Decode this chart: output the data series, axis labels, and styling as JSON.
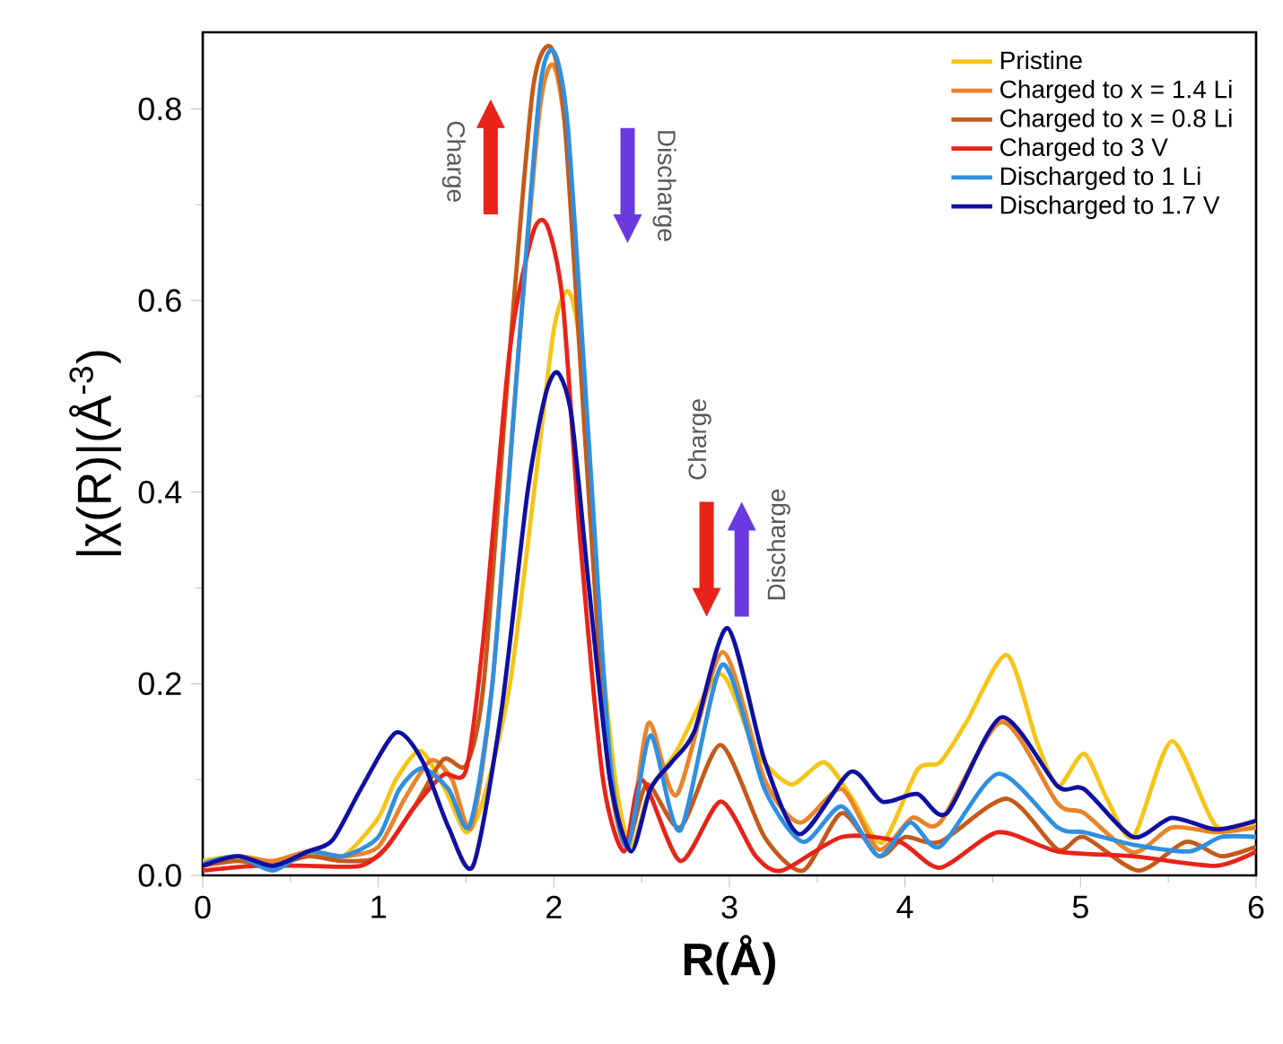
{
  "chart_data": {
    "type": "line",
    "xlabel": "R(Å)",
    "ylabel": "|χ(R)|(Å$^{-3}$)",
    "xlim": [
      0,
      6
    ],
    "ylim": [
      0,
      0.88
    ],
    "xticks": [
      0,
      1,
      2,
      3,
      4,
      5,
      6
    ],
    "yticks": [
      {
        "value": 0,
        "label": "0.0"
      },
      0.2,
      0.4,
      0.6,
      0.8
    ],
    "legend": "top right",
    "annotations": [
      "Charge",
      "Discharge",
      "Charge",
      "Discharge"
    ],
    "series": [
      {
        "name": "Pristine",
        "color": "#f5c518",
        "x": [
          0,
          0.2,
          0.4,
          0.6,
          0.8,
          1.0,
          1.1,
          1.24,
          1.38,
          1.5,
          1.6,
          1.75,
          1.9,
          2.0,
          2.08,
          2.15,
          2.25,
          2.35,
          2.44,
          2.55,
          2.7,
          2.95,
          3.15,
          3.35,
          3.54,
          3.7,
          3.87,
          4.07,
          4.2,
          4.35,
          4.58,
          4.75,
          4.87,
          5.02,
          5.15,
          5.3,
          5.52,
          5.77,
          6.0
        ],
        "values": [
          0.015,
          0.02,
          0.012,
          0.02,
          0.02,
          0.06,
          0.1,
          0.13,
          0.09,
          0.045,
          0.08,
          0.2,
          0.42,
          0.57,
          0.61,
          0.55,
          0.28,
          0.1,
          0.03,
          0.09,
          0.13,
          0.21,
          0.13,
          0.095,
          0.118,
          0.08,
          0.034,
          0.11,
          0.118,
          0.16,
          0.23,
          0.14,
          0.093,
          0.127,
          0.08,
          0.04,
          0.14,
          0.052,
          0.055
        ]
      },
      {
        "name": "Charged to x = 1.4 Li",
        "color": "#e8842a",
        "x": [
          0,
          0.2,
          0.4,
          0.6,
          0.8,
          1.0,
          1.15,
          1.3,
          1.42,
          1.53,
          1.65,
          1.8,
          1.92,
          2.0,
          2.08,
          2.2,
          2.32,
          2.42,
          2.54,
          2.7,
          2.96,
          3.2,
          3.4,
          3.64,
          3.85,
          4.04,
          4.2,
          4.55,
          4.87,
          5.02,
          5.3,
          5.52,
          5.77,
          6.0
        ],
        "values": [
          0.01,
          0.02,
          0.015,
          0.025,
          0.02,
          0.03,
          0.08,
          0.12,
          0.1,
          0.05,
          0.2,
          0.55,
          0.8,
          0.845,
          0.75,
          0.4,
          0.12,
          0.03,
          0.159,
          0.084,
          0.233,
          0.1,
          0.055,
          0.09,
          0.027,
          0.06,
          0.055,
          0.16,
          0.075,
          0.065,
          0.024,
          0.05,
          0.045,
          0.05
        ]
      },
      {
        "name": "Charged to x = 0.8 Li",
        "color": "#c45a1a",
        "x": [
          0,
          0.2,
          0.4,
          0.6,
          0.8,
          1.0,
          1.2,
          1.37,
          1.5,
          1.6,
          1.75,
          1.88,
          1.98,
          2.06,
          2.18,
          2.3,
          2.41,
          2.53,
          2.72,
          2.95,
          3.2,
          3.42,
          3.64,
          3.85,
          4.0,
          4.2,
          4.58,
          4.87,
          5.02,
          5.33,
          5.6,
          5.8,
          6.0
        ],
        "values": [
          0.01,
          0.015,
          0.01,
          0.02,
          0.015,
          0.02,
          0.07,
          0.121,
          0.115,
          0.2,
          0.55,
          0.82,
          0.865,
          0.79,
          0.45,
          0.13,
          0.03,
          0.095,
          0.05,
          0.136,
          0.04,
          0.005,
          0.065,
          0.02,
          0.04,
          0.035,
          0.08,
          0.027,
          0.04,
          0.005,
          0.035,
          0.02,
          0.03
        ]
      },
      {
        "name": "Charged to 3 V",
        "color": "#e8231a",
        "x": [
          0,
          0.3,
          0.6,
          0.9,
          1.05,
          1.2,
          1.37,
          1.5,
          1.6,
          1.75,
          1.88,
          1.96,
          2.05,
          2.15,
          2.28,
          2.4,
          2.5,
          2.72,
          2.95,
          3.15,
          3.3,
          3.64,
          3.97,
          4.2,
          4.53,
          4.87,
          5.3,
          5.77,
          6.0
        ],
        "values": [
          0.005,
          0.01,
          0.01,
          0.01,
          0.03,
          0.07,
          0.105,
          0.11,
          0.25,
          0.55,
          0.67,
          0.679,
          0.6,
          0.35,
          0.1,
          0.025,
          0.1,
          0.015,
          0.077,
          0.02,
          0.005,
          0.04,
          0.035,
          0.008,
          0.045,
          0.025,
          0.02,
          0.01,
          0.025
        ]
      },
      {
        "name": "Discharged to 1 Li",
        "color": "#2f8fe0",
        "x": [
          0,
          0.2,
          0.4,
          0.6,
          0.8,
          1.0,
          1.12,
          1.25,
          1.4,
          1.52,
          1.65,
          1.8,
          1.92,
          2.0,
          2.08,
          2.2,
          2.32,
          2.42,
          2.55,
          2.72,
          2.96,
          3.2,
          3.42,
          3.64,
          3.85,
          4.03,
          4.2,
          4.53,
          4.87,
          5.02,
          5.3,
          5.62,
          5.8,
          6.0
        ],
        "values": [
          0.012,
          0.02,
          0.005,
          0.025,
          0.02,
          0.04,
          0.09,
          0.112,
          0.09,
          0.052,
          0.2,
          0.55,
          0.82,
          0.86,
          0.78,
          0.45,
          0.12,
          0.03,
          0.146,
          0.047,
          0.22,
          0.09,
          0.035,
          0.072,
          0.02,
          0.055,
          0.03,
          0.106,
          0.05,
          0.045,
          0.032,
          0.025,
          0.04,
          0.04
        ]
      },
      {
        "name": "Discharged to 1.7 V",
        "color": "#1010a0",
        "x": [
          0,
          0.2,
          0.4,
          0.6,
          0.74,
          0.9,
          1.1,
          1.25,
          1.4,
          1.54,
          1.7,
          1.85,
          1.95,
          2.02,
          2.1,
          2.2,
          2.32,
          2.44,
          2.55,
          2.67,
          2.8,
          2.99,
          3.2,
          3.4,
          3.69,
          3.87,
          4.07,
          4.24,
          4.55,
          4.87,
          5.02,
          5.3,
          5.52,
          5.77,
          6.0
        ],
        "values": [
          0.01,
          0.02,
          0.01,
          0.025,
          0.037,
          0.09,
          0.149,
          0.12,
          0.05,
          0.01,
          0.17,
          0.4,
          0.5,
          0.525,
          0.48,
          0.3,
          0.1,
          0.025,
          0.09,
          0.118,
          0.15,
          0.258,
          0.12,
          0.043,
          0.108,
          0.077,
          0.085,
          0.065,
          0.165,
          0.093,
          0.09,
          0.04,
          0.06,
          0.048,
          0.057
        ]
      }
    ]
  }
}
